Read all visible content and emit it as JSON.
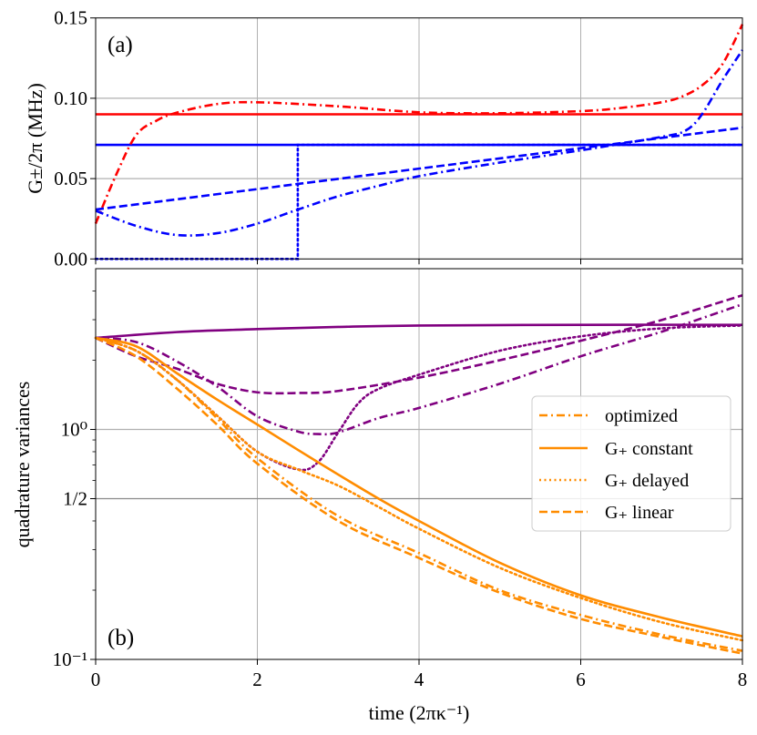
{
  "colors": {
    "red": "#ff0000",
    "blue": "#0000ff",
    "purple": "#800080",
    "orange": "#ff8c00",
    "grid": "#b0b0b0",
    "grid_half": "#8a8a8a"
  },
  "chart_data": [
    {
      "type": "line",
      "panel_label": "(a)",
      "ylabel": "G±/2π (MHz)",
      "xlabel": "",
      "xlim": [
        0,
        8
      ],
      "ylim": [
        0,
        0.15
      ],
      "yscale": "linear",
      "grid": true,
      "xticks": [
        0,
        2,
        4,
        6,
        8
      ],
      "xtick_labels_shown": false,
      "yticks": [
        0.0,
        0.05,
        0.1,
        0.15
      ],
      "ytick_labels": [
        "0.00",
        "0.05",
        "0.10",
        "0.15"
      ],
      "series": [
        {
          "color": "red",
          "style": "solid",
          "x": [
            0,
            8
          ],
          "y": [
            0.09,
            0.09
          ]
        },
        {
          "color": "blue",
          "style": "solid",
          "x": [
            0,
            8
          ],
          "y": [
            0.071,
            0.071
          ]
        },
        {
          "color": "red",
          "style": "dashdot",
          "x": [
            0,
            0.25,
            0.5,
            0.75,
            1,
            1.5,
            2,
            3,
            4,
            5,
            6,
            6.5,
            7,
            7.25,
            7.5,
            7.75,
            8
          ],
          "y": [
            0.022,
            0.052,
            0.077,
            0.086,
            0.091,
            0.0964,
            0.0975,
            0.095,
            0.0913,
            0.0907,
            0.092,
            0.094,
            0.0975,
            0.101,
            0.108,
            0.121,
            0.146
          ]
        },
        {
          "color": "blue",
          "style": "dashed",
          "x": [
            0,
            8
          ],
          "y": [
            0.0307,
            0.0817
          ]
        },
        {
          "color": "blue",
          "style": "dashdot",
          "x": [
            0,
            0.5,
            1,
            1.5,
            2,
            2.5,
            3,
            3.5,
            4,
            5,
            6,
            7,
            7.3,
            7.5,
            7.75,
            8
          ],
          "y": [
            0.03,
            0.0206,
            0.0149,
            0.016,
            0.022,
            0.0307,
            0.039,
            0.0455,
            0.0515,
            0.06,
            0.0676,
            0.076,
            0.08,
            0.09,
            0.111,
            0.13
          ]
        },
        {
          "color": "blue",
          "style": "dotted",
          "x": [
            0,
            2.5,
            2.5,
            8
          ],
          "y": [
            0,
            0,
            0.071,
            0.071
          ]
        }
      ]
    },
    {
      "type": "line",
      "panel_label": "(b)",
      "ylabel": "quadrature variances",
      "xlabel": "time (2πκ⁻¹)",
      "xlim": [
        0,
        8
      ],
      "ylim": [
        0.1,
        5.0
      ],
      "yscale": "log",
      "grid": true,
      "xticks": [
        0,
        2,
        4,
        6,
        8
      ],
      "xtick_labels": [
        "0",
        "2",
        "4",
        "6",
        "8"
      ],
      "yticks": [
        0.1,
        0.5,
        1.0
      ],
      "ytick_labels": [
        "10⁻¹",
        "1/2",
        "10⁰"
      ],
      "legend_position": "center-right",
      "series": [
        {
          "color": "purple",
          "style": "solid",
          "x": [
            0,
            1,
            2,
            3,
            4,
            6,
            8
          ],
          "y": [
            2.5,
            2.65,
            2.73,
            2.79,
            2.83,
            2.85,
            2.85
          ]
        },
        {
          "color": "purple",
          "style": "dashed",
          "x": [
            0,
            0.5,
            1,
            1.5,
            2,
            2.5,
            3,
            4,
            5,
            6,
            7,
            8
          ],
          "y": [
            2.5,
            2.08,
            1.84,
            1.58,
            1.45,
            1.44,
            1.47,
            1.68,
            2.0,
            2.43,
            2.99,
            3.83
          ]
        },
        {
          "color": "purple",
          "style": "dashdot",
          "x": [
            0,
            0.5,
            1,
            1.5,
            2,
            2.5,
            2.75,
            3,
            3.5,
            4,
            5,
            6,
            7,
            8
          ],
          "y": [
            2.5,
            2.4,
            1.98,
            1.54,
            1.14,
            0.98,
            0.955,
            0.97,
            1.12,
            1.24,
            1.58,
            2.08,
            2.66,
            3.5
          ]
        },
        {
          "color": "purple",
          "style": "dotted",
          "x": [
            0,
            0.5,
            1,
            1.5,
            2,
            2.5,
            2.75,
            3,
            3.25,
            3.5,
            4,
            5,
            6,
            7,
            8
          ],
          "y": [
            2.5,
            2.2,
            1.65,
            1.15,
            0.8,
            0.67,
            0.72,
            0.97,
            1.3,
            1.5,
            1.73,
            2.2,
            2.54,
            2.75,
            2.83
          ]
        },
        {
          "name": "G₊ constant",
          "color": "orange",
          "style": "solid",
          "x": [
            0,
            0.5,
            1,
            1.5,
            2,
            2.75,
            3.5,
            4,
            5,
            6,
            7,
            8
          ],
          "y": [
            2.5,
            2.3,
            1.76,
            1.35,
            1.05,
            0.72,
            0.5,
            0.4,
            0.263,
            0.19,
            0.152,
            0.126
          ]
        },
        {
          "name": "G₊ delayed",
          "color": "orange",
          "style": "dotted",
          "x": [
            0,
            0.5,
            1,
            1.5,
            2,
            2.5,
            3,
            3.5,
            4,
            5,
            6,
            7,
            8
          ],
          "y": [
            2.5,
            2.2,
            1.65,
            1.15,
            0.8,
            0.67,
            0.57,
            0.46,
            0.37,
            0.25,
            0.185,
            0.145,
            0.121
          ]
        },
        {
          "name": "optimized",
          "color": "orange",
          "style": "dashdot",
          "x": [
            0,
            0.5,
            1,
            1.5,
            2,
            3,
            4,
            5,
            6,
            7,
            8
          ],
          "y": [
            2.5,
            2.2,
            1.65,
            1.12,
            0.75,
            0.42,
            0.29,
            0.2,
            0.156,
            0.128,
            0.109
          ]
        },
        {
          "name": "G₊ linear",
          "color": "orange",
          "style": "dashed",
          "x": [
            0,
            0.5,
            1,
            1.5,
            2,
            3,
            4,
            5,
            6,
            7,
            8
          ],
          "y": [
            2.5,
            2.08,
            1.51,
            1.05,
            0.71,
            0.4,
            0.276,
            0.195,
            0.15,
            0.125,
            0.106
          ]
        }
      ],
      "legend": [
        {
          "label": "optimized",
          "color": "orange",
          "style": "dashdot"
        },
        {
          "label": "G₊ constant",
          "color": "orange",
          "style": "solid"
        },
        {
          "label": "G₊ delayed",
          "color": "orange",
          "style": "dotted"
        },
        {
          "label": "G₊ linear",
          "color": "orange",
          "style": "dashed"
        }
      ]
    }
  ]
}
